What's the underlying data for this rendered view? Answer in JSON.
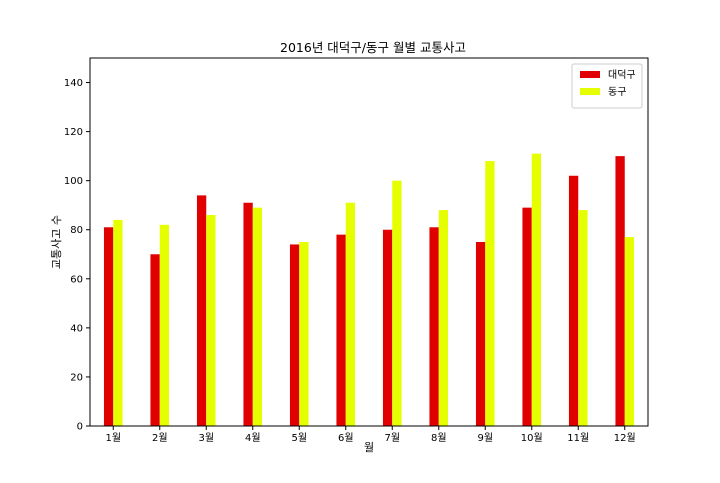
{
  "chart_data": {
    "type": "bar",
    "title": "2016년 대덕구/동구 월별 교통사고",
    "xlabel": "월",
    "ylabel": "교통사고 수",
    "categories": [
      "1월",
      "2월",
      "3월",
      "4월",
      "5월",
      "6월",
      "7월",
      "8월",
      "9월",
      "10월",
      "11월",
      "12월"
    ],
    "series": [
      {
        "name": "대덕구",
        "color": "#e00000",
        "values": [
          81,
          70,
          94,
          91,
          74,
          78,
          80,
          81,
          75,
          89,
          102,
          110
        ]
      },
      {
        "name": "동구",
        "color": "#e5ff00",
        "values": [
          84,
          82,
          86,
          89,
          75,
          91,
          100,
          88,
          108,
          111,
          88,
          77
        ]
      }
    ],
    "ylim": [
      0,
      150
    ],
    "yticks": [
      0,
      20,
      40,
      60,
      80,
      100,
      120,
      140
    ],
    "grid": false,
    "legend": "top-right"
  }
}
